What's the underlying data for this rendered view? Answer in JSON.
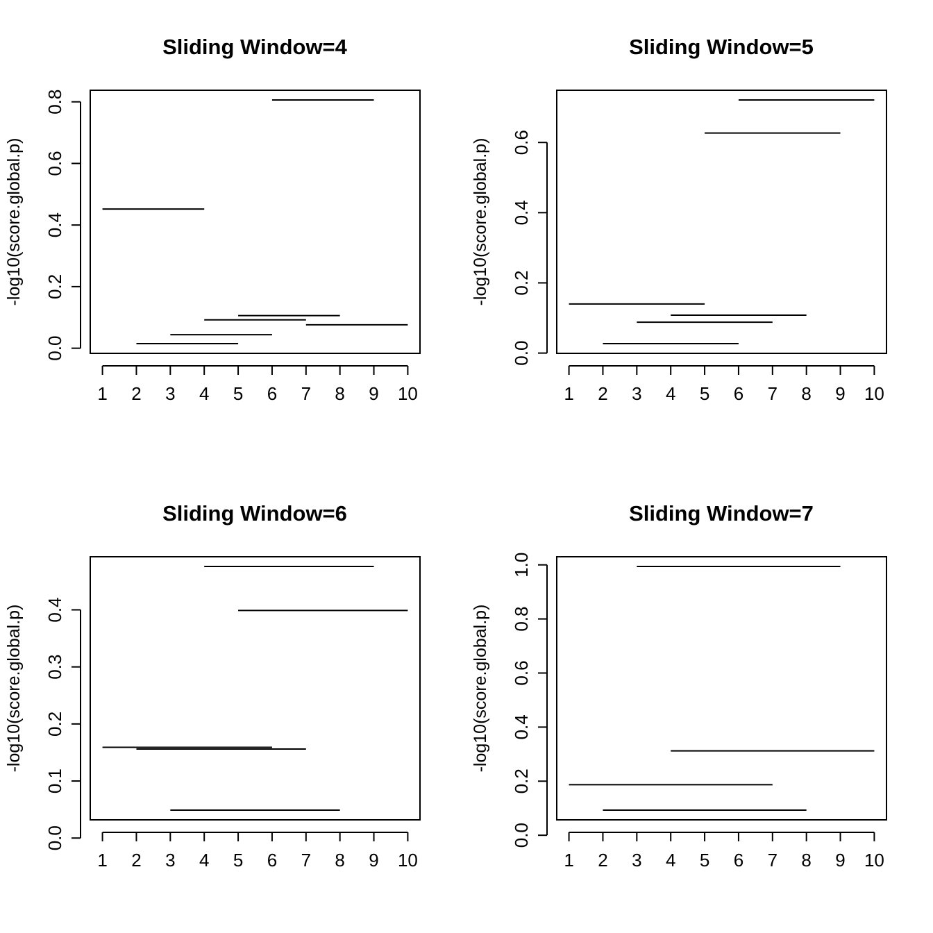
{
  "chart_data": [
    {
      "type": "segments",
      "title": "Sliding Window=4",
      "xlabel": "",
      "ylabel": "-log10(score.global.p)",
      "x_ticks": [
        1,
        2,
        3,
        4,
        5,
        6,
        7,
        8,
        9,
        10
      ],
      "y_ticks": [
        "0.0",
        "0.2",
        "0.4",
        "0.6",
        "0.8"
      ],
      "xlim": [
        1,
        10
      ],
      "ylim": [
        0.0,
        0.8
      ],
      "grid": false,
      "segments": [
        {
          "x0": 1,
          "x1": 4,
          "y": 0.452
        },
        {
          "x0": 2,
          "x1": 5,
          "y": 0.015
        },
        {
          "x0": 3,
          "x1": 6,
          "y": 0.044
        },
        {
          "x0": 4,
          "x1": 7,
          "y": 0.092
        },
        {
          "x0": 5,
          "x1": 8,
          "y": 0.106
        },
        {
          "x0": 6,
          "x1": 9,
          "y": 0.806
        },
        {
          "x0": 7,
          "x1": 10,
          "y": 0.076
        }
      ]
    },
    {
      "type": "segments",
      "title": "Sliding Window=5",
      "xlabel": "",
      "ylabel": "-log10(score.global.p)",
      "x_ticks": [
        1,
        2,
        3,
        4,
        5,
        6,
        7,
        8,
        9,
        10
      ],
      "y_ticks": [
        "0.0",
        "0.2",
        "0.4",
        "0.6"
      ],
      "xlim": [
        1,
        10
      ],
      "ylim": [
        0.0,
        0.6
      ],
      "grid": false,
      "segments": [
        {
          "x0": 1,
          "x1": 5,
          "y": 0.14
        },
        {
          "x0": 2,
          "x1": 6,
          "y": 0.027
        },
        {
          "x0": 3,
          "x1": 7,
          "y": 0.088
        },
        {
          "x0": 4,
          "x1": 8,
          "y": 0.108
        },
        {
          "x0": 5,
          "x1": 9,
          "y": 0.627
        },
        {
          "x0": 6,
          "x1": 10,
          "y": 0.721
        }
      ]
    },
    {
      "type": "segments",
      "title": "Sliding Window=6",
      "xlabel": "",
      "ylabel": "-log10(score.global.p)",
      "x_ticks": [
        1,
        2,
        3,
        4,
        5,
        6,
        7,
        8,
        9,
        10
      ],
      "y_ticks": [
        "0.0",
        "0.1",
        "0.2",
        "0.3",
        "0.4"
      ],
      "xlim": [
        1,
        10
      ],
      "ylim": [
        0.0,
        0.4
      ],
      "grid": false,
      "segments": [
        {
          "x0": 1,
          "x1": 6,
          "y": 0.159
        },
        {
          "x0": 2,
          "x1": 7,
          "y": 0.156
        },
        {
          "x0": 3,
          "x1": 8,
          "y": 0.049
        },
        {
          "x0": 4,
          "x1": 9,
          "y": 0.476
        },
        {
          "x0": 5,
          "x1": 10,
          "y": 0.399
        }
      ]
    },
    {
      "type": "segments",
      "title": "Sliding Window=7",
      "xlabel": "",
      "ylabel": "-log10(score.global.p)",
      "x_ticks": [
        1,
        2,
        3,
        4,
        5,
        6,
        7,
        8,
        9,
        10
      ],
      "y_ticks": [
        "0.0",
        "0.2",
        "0.4",
        "0.6",
        "0.8",
        "1.0"
      ],
      "xlim": [
        1,
        10
      ],
      "ylim": [
        0.0,
        1.0
      ],
      "grid": false,
      "segments": [
        {
          "x0": 1,
          "x1": 7,
          "y": 0.187
        },
        {
          "x0": 2,
          "x1": 8,
          "y": 0.093
        },
        {
          "x0": 3,
          "x1": 9,
          "y": 0.994
        },
        {
          "x0": 4,
          "x1": 10,
          "y": 0.312
        }
      ]
    }
  ]
}
